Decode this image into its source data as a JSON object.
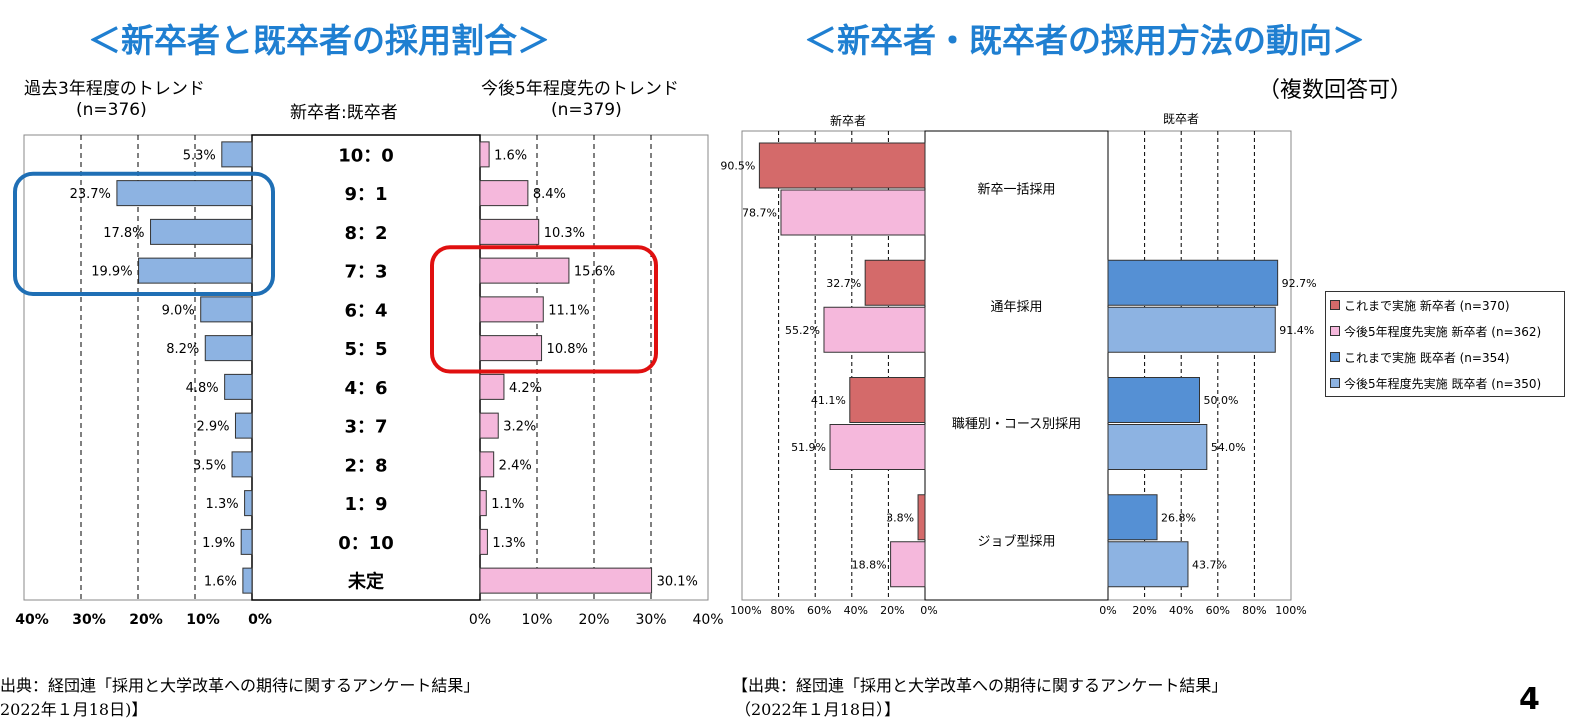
{
  "left": {
    "title": "＜新卒者と既卒者の採用割合＞",
    "past_label": "過去3年程度のトレンド",
    "past_n": "(n=376)",
    "future_label": "今後5年程度先のトレンド",
    "future_n": "(n=379)",
    "center_header": "新卒者:既卒者",
    "left_axis_ticks": [
      "40%",
      "30%",
      "20%",
      "10%",
      "0%"
    ],
    "right_axis_ticks": [
      "0%",
      "10%",
      "20%",
      "30%",
      "40%"
    ],
    "source_line1": "出典：経団連「採用と大学改革への期待に関するアンケート結果」",
    "source_line2": "2022年１月18日)】"
  },
  "right": {
    "title": "＜新卒者・既卒者の採用方法の動向＞",
    "note": "（複数回答可）",
    "panel_left_label": "新卒者",
    "panel_right_label": "既卒者",
    "left_axis_ticks": [
      "100%",
      "80%",
      "60%",
      "40%",
      "20%",
      "0%"
    ],
    "right_axis_ticks": [
      "0%",
      "20%",
      "40%",
      "60%",
      "80%",
      "100%"
    ],
    "source_line1": "【出典：経団連「採用と大学改革への期待に関するアンケート結果」",
    "source_line2": "（2022年１月18日）】"
  },
  "page_number": "4",
  "colors": {
    "title_blue": "#1f7fd1",
    "past_bar": "#8db3e2",
    "future_bar": "#f5b8dc",
    "new_past": "#d46a6a",
    "new_future": "#f5b8dc",
    "exp_past": "#5590d4",
    "exp_future": "#8db3e2",
    "highlight_blue": "#1f6fb5",
    "highlight_red": "#e01010"
  },
  "chart_data": [
    {
      "type": "bar",
      "title": "＜新卒者と既卒者の採用割合＞",
      "categories": [
        "10：0",
        "9：1",
        "8：2",
        "7：3",
        "6：4",
        "5：5",
        "4：6",
        "3：7",
        "2：8",
        "1：9",
        "0：10",
        "未定"
      ],
      "series": [
        {
          "name": "過去3年程度のトレンド",
          "values": [
            5.3,
            23.7,
            17.8,
            19.9,
            9.0,
            8.2,
            4.8,
            2.9,
            3.5,
            1.3,
            1.9,
            1.6
          ],
          "labels": [
            "5.3%",
            "23.7%",
            "17.8%",
            "19.9%",
            "9.0%",
            "8.2%",
            "4.8%",
            "2.9%",
            "3.5%",
            "1.3%",
            "1.9%",
            "1.6%"
          ]
        },
        {
          "name": "今後5年程度先のトレンド",
          "values": [
            1.6,
            8.4,
            10.3,
            15.6,
            11.1,
            10.8,
            4.2,
            3.2,
            2.4,
            1.1,
            1.3,
            30.1
          ],
          "labels": [
            "1.6%",
            "8.4%",
            "10.3%",
            "15.6%",
            "11.1%",
            "10.8%",
            "4.2%",
            "3.2%",
            "2.4%",
            "1.1%",
            "1.3%",
            "30.1%"
          ]
        }
      ],
      "xlim": [
        0,
        40
      ],
      "orientation": "horizontal-butterfly",
      "grid": true
    },
    {
      "type": "bar",
      "title": "＜新卒者・既卒者の採用方法の動向＞",
      "categories": [
        "新卒一括採用",
        "通年採用",
        "職種別・コース別採用",
        "ジョブ型採用"
      ],
      "series": [
        {
          "name": "これまで実施 新卒者 (n=370)",
          "values": [
            90.5,
            32.7,
            41.1,
            3.8
          ],
          "labels": [
            "90.5%",
            "32.7%",
            "41.1%",
            "3.8%"
          ]
        },
        {
          "name": "今後5年程度先実施 新卒者 (n=362)",
          "values": [
            78.7,
            55.2,
            51.9,
            18.8
          ],
          "labels": [
            "78.7%",
            "55.2%",
            "51.9%",
            "18.8%"
          ]
        },
        {
          "name": "これまで実施 既卒者 (n=354)",
          "values": [
            null,
            92.7,
            50.0,
            26.8
          ],
          "labels": [
            "",
            "92.7%",
            "50.0%",
            "26.8%"
          ]
        },
        {
          "name": "今後5年程度先実施 既卒者 (n=350)",
          "values": [
            null,
            91.4,
            54.0,
            43.7
          ],
          "labels": [
            "",
            "91.4%",
            "54.0%",
            "43.7%"
          ]
        }
      ],
      "xlim": [
        0,
        100
      ],
      "legend": "right",
      "grid": true
    }
  ]
}
